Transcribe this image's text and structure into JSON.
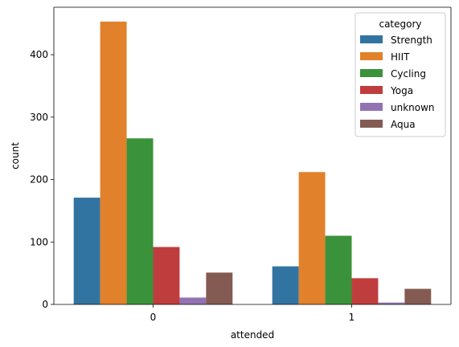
{
  "chart_data": {
    "type": "bar",
    "xlabel": "attended",
    "ylabel": "count",
    "categories": [
      "0",
      "1"
    ],
    "ylim": [
      0,
      476
    ],
    "yticks": [
      0,
      100,
      200,
      300,
      400
    ],
    "grid": false,
    "legend_position": "top-right",
    "legend_title": "category",
    "series": [
      {
        "name": "Strength",
        "color": "#3274a1",
        "values": [
          171,
          61
        ]
      },
      {
        "name": "HIIT",
        "color": "#e1812c",
        "values": [
          453,
          212
        ]
      },
      {
        "name": "Cycling",
        "color": "#3a923a",
        "values": [
          266,
          110
        ]
      },
      {
        "name": "Yoga",
        "color": "#c03d3e",
        "values": [
          92,
          42
        ]
      },
      {
        "name": "unknown",
        "color": "#9372b2",
        "values": [
          11,
          3
        ]
      },
      {
        "name": "Aqua",
        "color": "#845b53",
        "values": [
          51,
          25
        ]
      }
    ]
  }
}
